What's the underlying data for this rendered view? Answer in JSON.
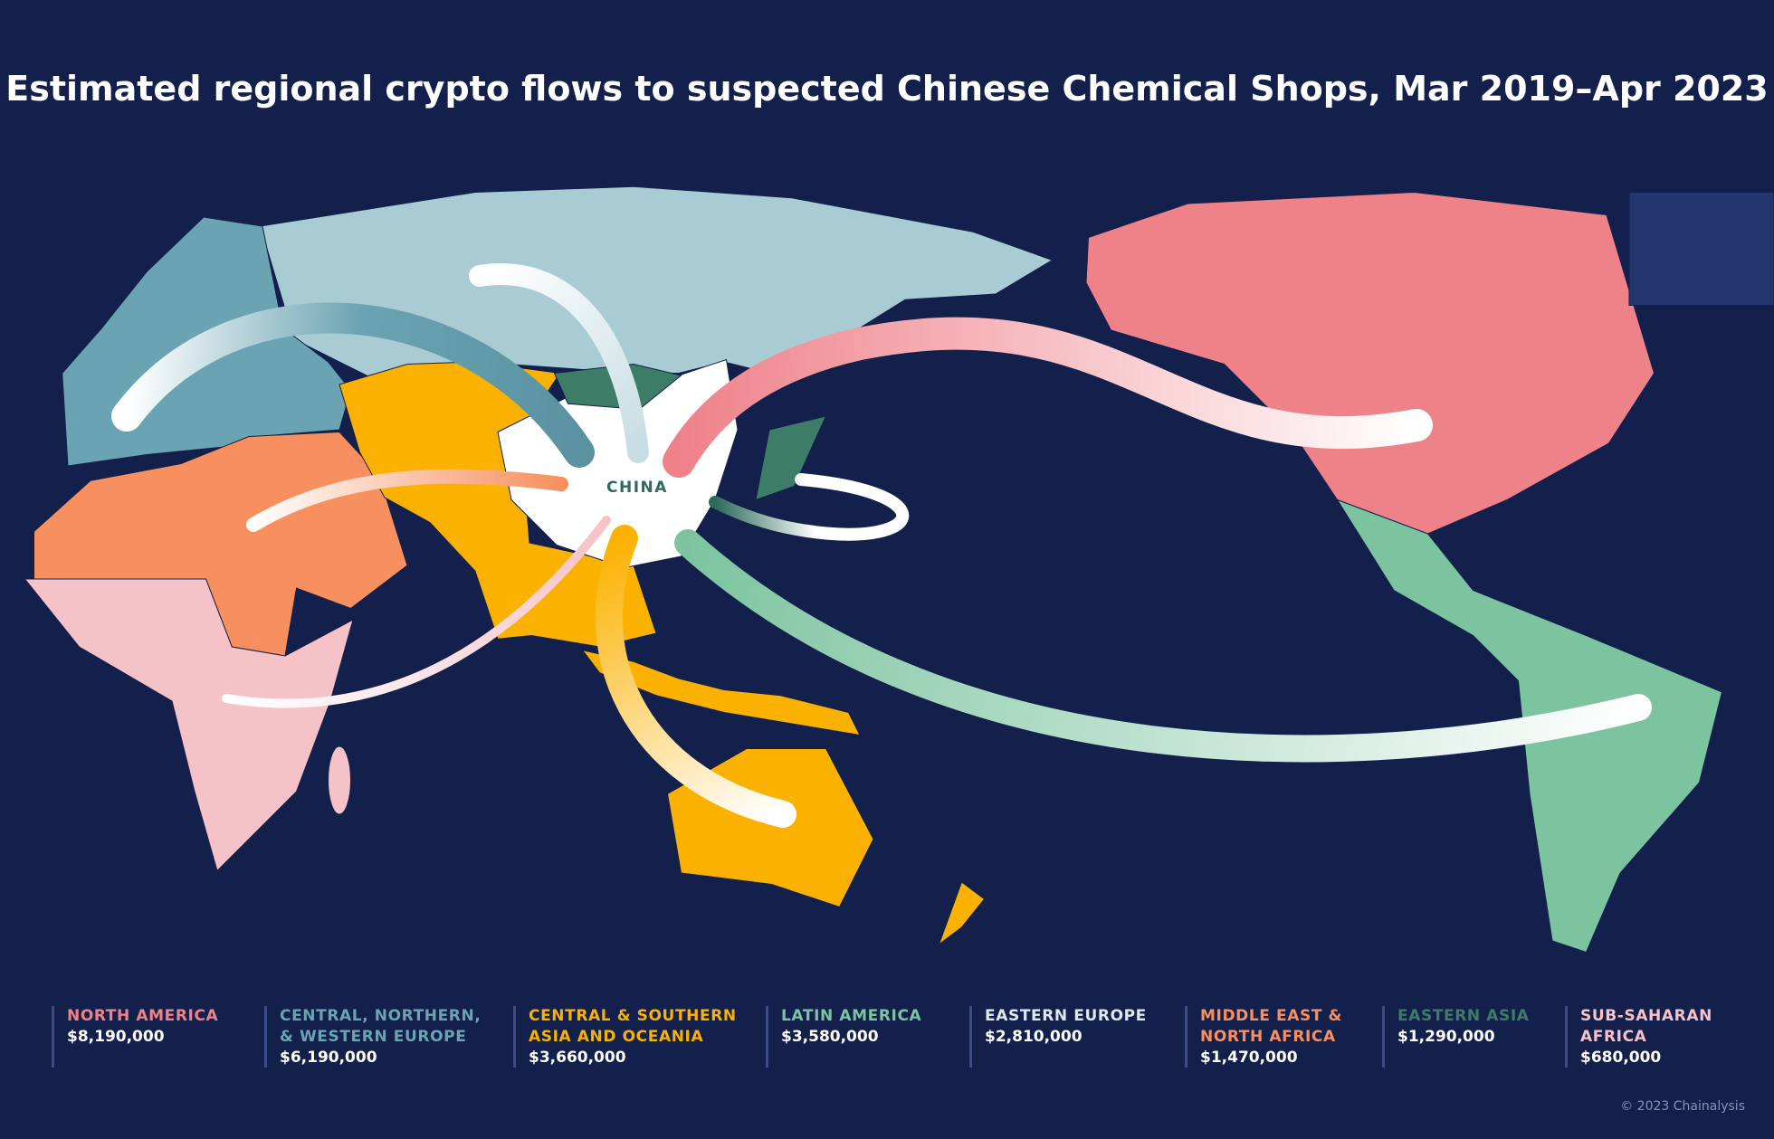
{
  "title": "Estimated regional crypto flows to suspected Chinese Chemical Shops, Mar 2019–Apr 2023",
  "map": {
    "center_label": "CHINA"
  },
  "legend": [
    {
      "name": "NORTH AMERICA",
      "value": "$8,190,000",
      "color": "#ef8189"
    },
    {
      "name": "CENTRAL, NORTHERN, & WESTERN EUROPE",
      "value": "$6,190,000",
      "color": "#6aa3b2"
    },
    {
      "name": "CENTRAL & SOUTHERN ASIA AND OCEANIA",
      "value": "$3,660,000",
      "color": "#fbb100"
    },
    {
      "name": "LATIN AMERICA",
      "value": "$3,580,000",
      "color": "#7cc4a0"
    },
    {
      "name": "EASTERN EUROPE",
      "value": "$2,810,000",
      "color": "#dce8ec"
    },
    {
      "name": "MIDDLE EAST & NORTH AFRICA",
      "value": "$1,470,000",
      "color": "#f7905e"
    },
    {
      "name": "EASTERN ASIA",
      "value": "$1,290,000",
      "color": "#3d7d68"
    },
    {
      "name": "SUB-SAHARAN AFRICA",
      "value": "$680,000",
      "color": "#f5c2c8"
    }
  ],
  "footer": {
    "credit": "© 2023 Chainalysis"
  }
}
